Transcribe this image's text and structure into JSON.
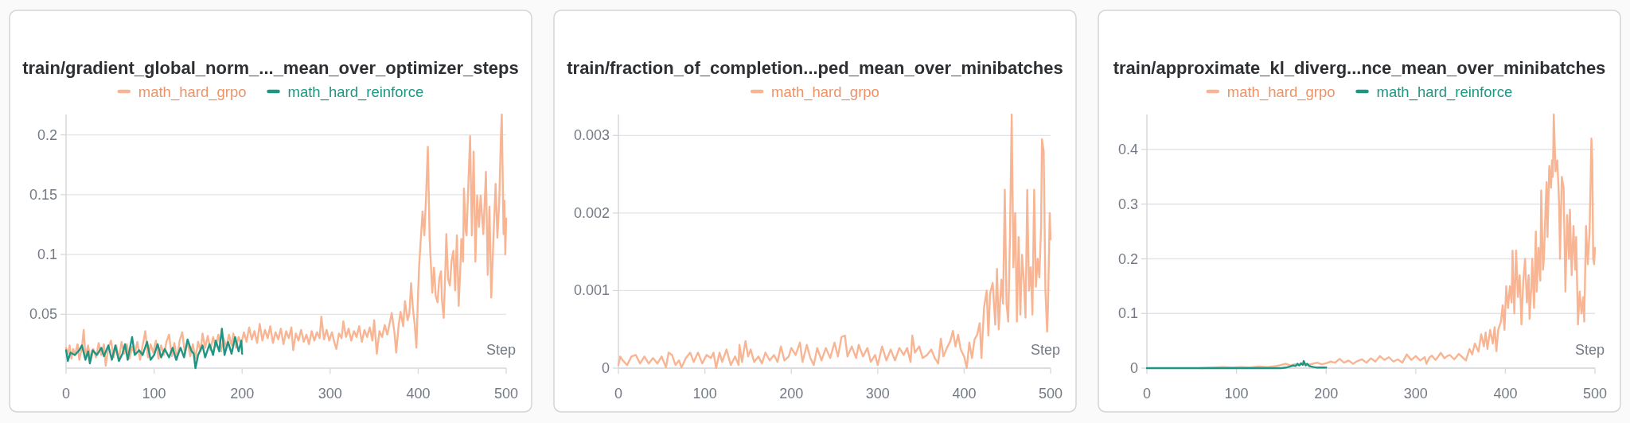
{
  "chart_data": [
    {
      "type": "line",
      "title": "train/gradient_global_norm_..._mean_over_optimizer_steps",
      "xlabel": "Step",
      "xlim": [
        0,
        500
      ],
      "xticks": [
        0,
        100,
        200,
        300,
        400,
        500
      ],
      "ylim": [
        0.005,
        0.217
      ],
      "yticks": [
        0.05,
        0.1,
        0.15,
        0.2
      ],
      "grid": "y",
      "legend": "top",
      "series": [
        {
          "name": "math_hard_grpo",
          "color": "#f8b593",
          "x": [
            0,
            2,
            4,
            6,
            8,
            10,
            13,
            15,
            18,
            20,
            22,
            25,
            28,
            31,
            34,
            37,
            40,
            43,
            45,
            48,
            51,
            54,
            57,
            60,
            63,
            66,
            69,
            72,
            75,
            78,
            81,
            84,
            87,
            90,
            93,
            96,
            99,
            102,
            105,
            108,
            111,
            114,
            117,
            120,
            123,
            126,
            129,
            132,
            135,
            138,
            141,
            144,
            147,
            150,
            153,
            155,
            158,
            161,
            164,
            167,
            170,
            173,
            176,
            179,
            182,
            185,
            188,
            190,
            193,
            196,
            199,
            202,
            205,
            208,
            211,
            214,
            217,
            220,
            223,
            226,
            229,
            232,
            235,
            238,
            241,
            244,
            247,
            250,
            253,
            256,
            258,
            261,
            264,
            267,
            270,
            273,
            276,
            279,
            282,
            285,
            288,
            290,
            293,
            296,
            299,
            302,
            305,
            307,
            310,
            313,
            315,
            318,
            321,
            324,
            327,
            330,
            333,
            336,
            339,
            342,
            345,
            348,
            350,
            353,
            356,
            359,
            362,
            365,
            368,
            370,
            373,
            375,
            378,
            380,
            383,
            385,
            388,
            390,
            392,
            394,
            396,
            398,
            400,
            401,
            403,
            405,
            407,
            409,
            411,
            413,
            416,
            418,
            420,
            422,
            424,
            426,
            427,
            429,
            431,
            432,
            434,
            436,
            438,
            440,
            442,
            444,
            446,
            448,
            449,
            451,
            452,
            454,
            455,
            457,
            459,
            461,
            463,
            465,
            467,
            469,
            471,
            474,
            477,
            479,
            481,
            483,
            486,
            488,
            490,
            492,
            494,
            495,
            497,
            498,
            499,
            500
          ],
          "values": [
            0.022,
            0.017,
            0.024,
            0.013,
            0.021,
            0.016,
            0.025,
            0.012,
            0.022,
            0.037,
            0.015,
            0.024,
            0.011,
            0.021,
            0.014,
            0.026,
            0.016,
            0.025,
            0.007,
            0.022,
            0.028,
            0.014,
            0.024,
            0.012,
            0.027,
            0.017,
            0.025,
            0.013,
            0.023,
            0.017,
            0.027,
            0.012,
            0.024,
            0.036,
            0.014,
            0.025,
            0.018,
            0.028,
            0.013,
            0.024,
            0.016,
            0.027,
            0.033,
            0.015,
            0.026,
            0.012,
            0.028,
            0.035,
            0.017,
            0.027,
            0.015,
            0.025,
            0.013,
            0.027,
            0.019,
            0.034,
            0.022,
            0.032,
            0.02,
            0.031,
            0.023,
            0.033,
            0.019,
            0.03,
            0.022,
            0.033,
            0.024,
            0.034,
            0.022,
            0.031,
            0.025,
            0.035,
            0.027,
            0.039,
            0.029,
            0.036,
            0.026,
            0.042,
            0.028,
            0.037,
            0.03,
            0.04,
            0.026,
            0.035,
            0.029,
            0.038,
            0.025,
            0.036,
            0.03,
            0.039,
            0.02,
            0.034,
            0.028,
            0.037,
            0.027,
            0.033,
            0.025,
            0.036,
            0.028,
            0.035,
            0.03,
            0.048,
            0.029,
            0.037,
            0.028,
            0.035,
            0.026,
            0.021,
            0.034,
            0.03,
            0.044,
            0.031,
            0.038,
            0.028,
            0.036,
            0.031,
            0.04,
            0.027,
            0.037,
            0.031,
            0.039,
            0.028,
            0.045,
            0.017,
            0.036,
            0.031,
            0.041,
            0.033,
            0.044,
            0.051,
            0.035,
            0.018,
            0.042,
            0.052,
            0.04,
            0.061,
            0.045,
            0.051,
            0.076,
            0.055,
            0.042,
            0.022,
            0.07,
            0.089,
            0.113,
            0.136,
            0.116,
            0.149,
            0.19,
            0.114,
            0.068,
            0.089,
            0.065,
            0.06,
            0.08,
            0.086,
            0.062,
            0.047,
            0.09,
            0.117,
            0.08,
            0.074,
            0.095,
            0.103,
            0.07,
            0.116,
            0.057,
            0.09,
            0.113,
            0.094,
            0.155,
            0.12,
            0.116,
            0.158,
            0.199,
            0.116,
            0.186,
            0.094,
            0.149,
            0.123,
            0.149,
            0.117,
            0.169,
            0.083,
            0.14,
            0.064,
            0.123,
            0.159,
            0.114,
            0.142,
            0.199,
            0.217,
            0.117,
            0.145,
            0.1,
            0.13
          ]
        },
        {
          "name": "math_hard_reinforce",
          "color": "#1f9583",
          "x": [
            0,
            2,
            5,
            10,
            15,
            18,
            22,
            25,
            27,
            30,
            35,
            40,
            43,
            48,
            52,
            56,
            60,
            64,
            67,
            70,
            75,
            78,
            83,
            87,
            92,
            96,
            100,
            104,
            108,
            112,
            117,
            121,
            125,
            130,
            134,
            138,
            142,
            145,
            147,
            150,
            155,
            158,
            163,
            167,
            170,
            174,
            177,
            180,
            184,
            188,
            192,
            196,
            199,
            200
          ],
          "values": [
            0.02,
            0.011,
            0.018,
            0.016,
            0.02,
            0.024,
            0.012,
            0.019,
            0.009,
            0.02,
            0.016,
            0.022,
            0.015,
            0.024,
            0.012,
            0.024,
            0.011,
            0.017,
            0.025,
            0.012,
            0.031,
            0.016,
            0.02,
            0.016,
            0.027,
            0.012,
            0.016,
            0.025,
            0.014,
            0.021,
            0.014,
            0.022,
            0.012,
            0.022,
            0.014,
            0.029,
            0.02,
            0.017,
            0.005,
            0.016,
            0.024,
            0.014,
            0.025,
            0.016,
            0.028,
            0.019,
            0.038,
            0.016,
            0.027,
            0.017,
            0.031,
            0.019,
            0.028,
            0.017
          ]
        }
      ]
    },
    {
      "type": "line",
      "title": "train/fraction_of_completion...ped_mean_over_minibatches",
      "xlabel": "Step",
      "xlim": [
        0,
        500
      ],
      "xticks": [
        0,
        100,
        200,
        300,
        400,
        500
      ],
      "ylim": [
        0,
        0.00327
      ],
      "yticks": [
        0,
        0.001,
        0.002,
        0.003
      ],
      "grid": "y",
      "legend": "top",
      "series": [
        {
          "name": "math_hard_grpo",
          "color": "#f8b593",
          "x": [
            0,
            2,
            5,
            10,
            15,
            20,
            25,
            30,
            35,
            40,
            45,
            50,
            55,
            58,
            62,
            66,
            70,
            73,
            78,
            83,
            87,
            92,
            97,
            102,
            107,
            110,
            113,
            117,
            120,
            125,
            130,
            135,
            139,
            140,
            143,
            147,
            150,
            153,
            157,
            162,
            166,
            170,
            175,
            180,
            184,
            188,
            192,
            197,
            200,
            205,
            210,
            213,
            218,
            222,
            226,
            230,
            235,
            240,
            245,
            250,
            254,
            258,
            262,
            265,
            270,
            275,
            278,
            283,
            288,
            292,
            297,
            300,
            305,
            310,
            315,
            320,
            325,
            330,
            334,
            338,
            340,
            343,
            348,
            352,
            357,
            362,
            366,
            370,
            373,
            376,
            380,
            384,
            387,
            390,
            393,
            396,
            400,
            403,
            406,
            409,
            412,
            415,
            418,
            420,
            423,
            426,
            428,
            430,
            433,
            436,
            438,
            440,
            443,
            445,
            447,
            449,
            451,
            453,
            455,
            457,
            459,
            461,
            463,
            465,
            467,
            469,
            471,
            473,
            475,
            477,
            479,
            481,
            483,
            485,
            487,
            489,
            490,
            492,
            494,
            496,
            497,
            499,
            500
          ],
          "values": [
            4e-05,
            0.00015,
            0.0001,
            4e-05,
            0.00015,
            0.00017,
            6e-05,
            0.00015,
            6e-05,
            0.00013,
            6e-05,
            0.00015,
            1e-05,
            0.0002,
            0.00017,
            4e-05,
            0.0001,
            1e-05,
            0.00013,
            0.0002,
            8e-05,
            0.0002,
            6e-05,
            0.00017,
            0.00013,
            0.0002,
            0,
            0.0002,
            8e-05,
            0.00024,
            4e-05,
            0.00015,
            4e-05,
            0.0003,
            8e-05,
            0.00035,
            0.00015,
            0.00024,
            8e-05,
            0.00015,
            6e-05,
            0.0002,
            0.0001,
            0.00017,
            8e-05,
            0.00028,
            0.0001,
            0.00015,
            0.00026,
            0.00017,
            0.00033,
            8e-05,
            0.0003,
            0.00013,
            4e-05,
            0.00026,
            0.0001,
            0.00026,
            0.00013,
            0.00033,
            0.00015,
            0.0004,
            0.00042,
            0.00015,
            0.00028,
            0.00013,
            0.0003,
            0.00015,
            0.00026,
            8e-05,
            0.00017,
            4e-05,
            0.00028,
            0.0001,
            0.00024,
            0.0001,
            0.00026,
            0.00017,
            0.00026,
            8e-05,
            0.00042,
            0.0002,
            0.00028,
            0.00013,
            0.00017,
            0.00024,
            0.00013,
            6e-05,
            0.00038,
            0.00015,
            0.00026,
            0.00035,
            0.00048,
            0.00028,
            0.00043,
            0.00024,
            0.00015,
            0,
            0.00033,
            0.00013,
            0.00037,
            0.00043,
            0.00058,
            0.00013,
            0.00078,
            0.001,
            0.00042,
            0.00096,
            0.0011,
            0.00056,
            0.00128,
            0.0005,
            0.00114,
            0.00083,
            0.0023,
            0.00083,
            0.0006,
            0.0017,
            0.00327,
            0.0013,
            0.002,
            0.0006,
            0.00169,
            0.00069,
            0.00146,
            0.00114,
            0.00065,
            0.0023,
            0.001,
            0.0013,
            0.00069,
            0.0023,
            0.00105,
            0.00141,
            0.00117,
            0.00182,
            0.00295,
            0.0028,
            0.001,
            0.00047,
            0.00078,
            0.002,
            0.00166
          ]
        }
      ]
    },
    {
      "type": "line",
      "title": "train/approximate_kl_diverg...nce_mean_over_minibatches",
      "xlabel": "Step",
      "xlim": [
        0,
        500
      ],
      "xticks": [
        0,
        100,
        200,
        300,
        400,
        500
      ],
      "ylim": [
        0,
        0.464
      ],
      "yticks": [
        0,
        0.1,
        0.2,
        0.3,
        0.4
      ],
      "grid": "y",
      "legend": "top",
      "series": [
        {
          "name": "math_hard_grpo",
          "color": "#f8b593",
          "x": [
            60,
            75,
            85,
            95,
            105,
            115,
            125,
            135,
            145,
            150,
            155,
            160,
            165,
            170,
            175,
            180,
            185,
            190,
            195,
            200,
            205,
            210,
            215,
            220,
            225,
            230,
            235,
            240,
            245,
            250,
            255,
            260,
            265,
            270,
            275,
            280,
            285,
            290,
            295,
            300,
            305,
            310,
            312,
            315,
            318,
            322,
            325,
            328,
            332,
            335,
            338,
            343,
            348,
            352,
            356,
            360,
            363,
            366,
            370,
            373,
            376,
            378,
            380,
            383,
            386,
            388,
            390,
            392,
            395,
            397,
            399,
            401,
            403,
            405,
            407,
            408,
            410,
            412,
            414,
            416,
            418,
            420,
            422,
            424,
            426,
            427,
            429,
            430,
            432,
            434,
            435,
            437,
            439,
            440,
            442,
            443,
            445,
            446,
            447,
            449,
            451,
            452,
            453,
            454,
            456,
            458,
            460,
            461,
            463,
            465,
            467,
            469,
            471,
            472,
            474,
            476,
            478,
            479,
            481,
            483,
            485,
            487,
            488,
            490,
            492,
            494,
            496,
            497,
            498,
            499,
            500
          ],
          "values": [
            0,
            0.001,
            0.002,
            0.001,
            0.002,
            0.001,
            0.003,
            0.002,
            0.004,
            0.006,
            0.008,
            0.005,
            0.007,
            0.005,
            0.009,
            0.006,
            0.008,
            0.01,
            0.007,
            0.009,
            0.012,
            0.01,
            0.017,
            0.01,
            0.014,
            0.008,
            0.013,
            0.016,
            0.01,
            0.018,
            0.012,
            0.022,
            0.015,
            0.02,
            0.012,
            0.016,
            0.01,
            0.025,
            0.015,
            0.022,
            0.014,
            0.02,
            0.008,
            0.019,
            0.023,
            0.015,
            0.021,
            0.028,
            0.018,
            0.022,
            0.024,
            0.016,
            0.026,
            0.02,
            0.014,
            0.035,
            0.025,
            0.045,
            0.03,
            0.062,
            0.04,
            0.065,
            0.035,
            0.07,
            0.045,
            0.075,
            0.031,
            0.07,
            0.085,
            0.115,
            0.07,
            0.15,
            0.11,
            0.15,
            0.12,
            0.215,
            0.1,
            0.215,
            0.13,
            0.17,
            0.08,
            0.16,
            0.2,
            0.12,
            0.17,
            0.09,
            0.15,
            0.2,
            0.11,
            0.25,
            0.14,
            0.22,
            0.16,
            0.325,
            0.18,
            0.2,
            0.3,
            0.34,
            0.24,
            0.37,
            0.33,
            0.38,
            0.35,
            0.464,
            0.36,
            0.38,
            0.3,
            0.2,
            0.35,
            0.33,
            0.14,
            0.28,
            0.2,
            0.29,
            0.17,
            0.26,
            0.18,
            0.24,
            0.08,
            0.14,
            0.1,
            0.13,
            0.085,
            0.26,
            0.19,
            0.25,
            0.42,
            0.38,
            0.2,
            0.19,
            0.22
          ]
        },
        {
          "name": "math_hard_reinforce",
          "color": "#1f9583",
          "x": [
            0,
            50,
            100,
            150,
            155,
            160,
            163,
            166,
            168,
            170,
            172,
            174,
            175,
            177,
            179,
            181,
            183,
            186,
            190,
            195,
            200
          ],
          "values": [
            0,
            0,
            0,
            0,
            0.001,
            0.003,
            0.005,
            0.004,
            0.008,
            0.005,
            0.009,
            0.006,
            0.013,
            0.005,
            0.008,
            0.004,
            0.003,
            0.002,
            0.001,
            0.001,
            0.001
          ]
        }
      ]
    }
  ]
}
